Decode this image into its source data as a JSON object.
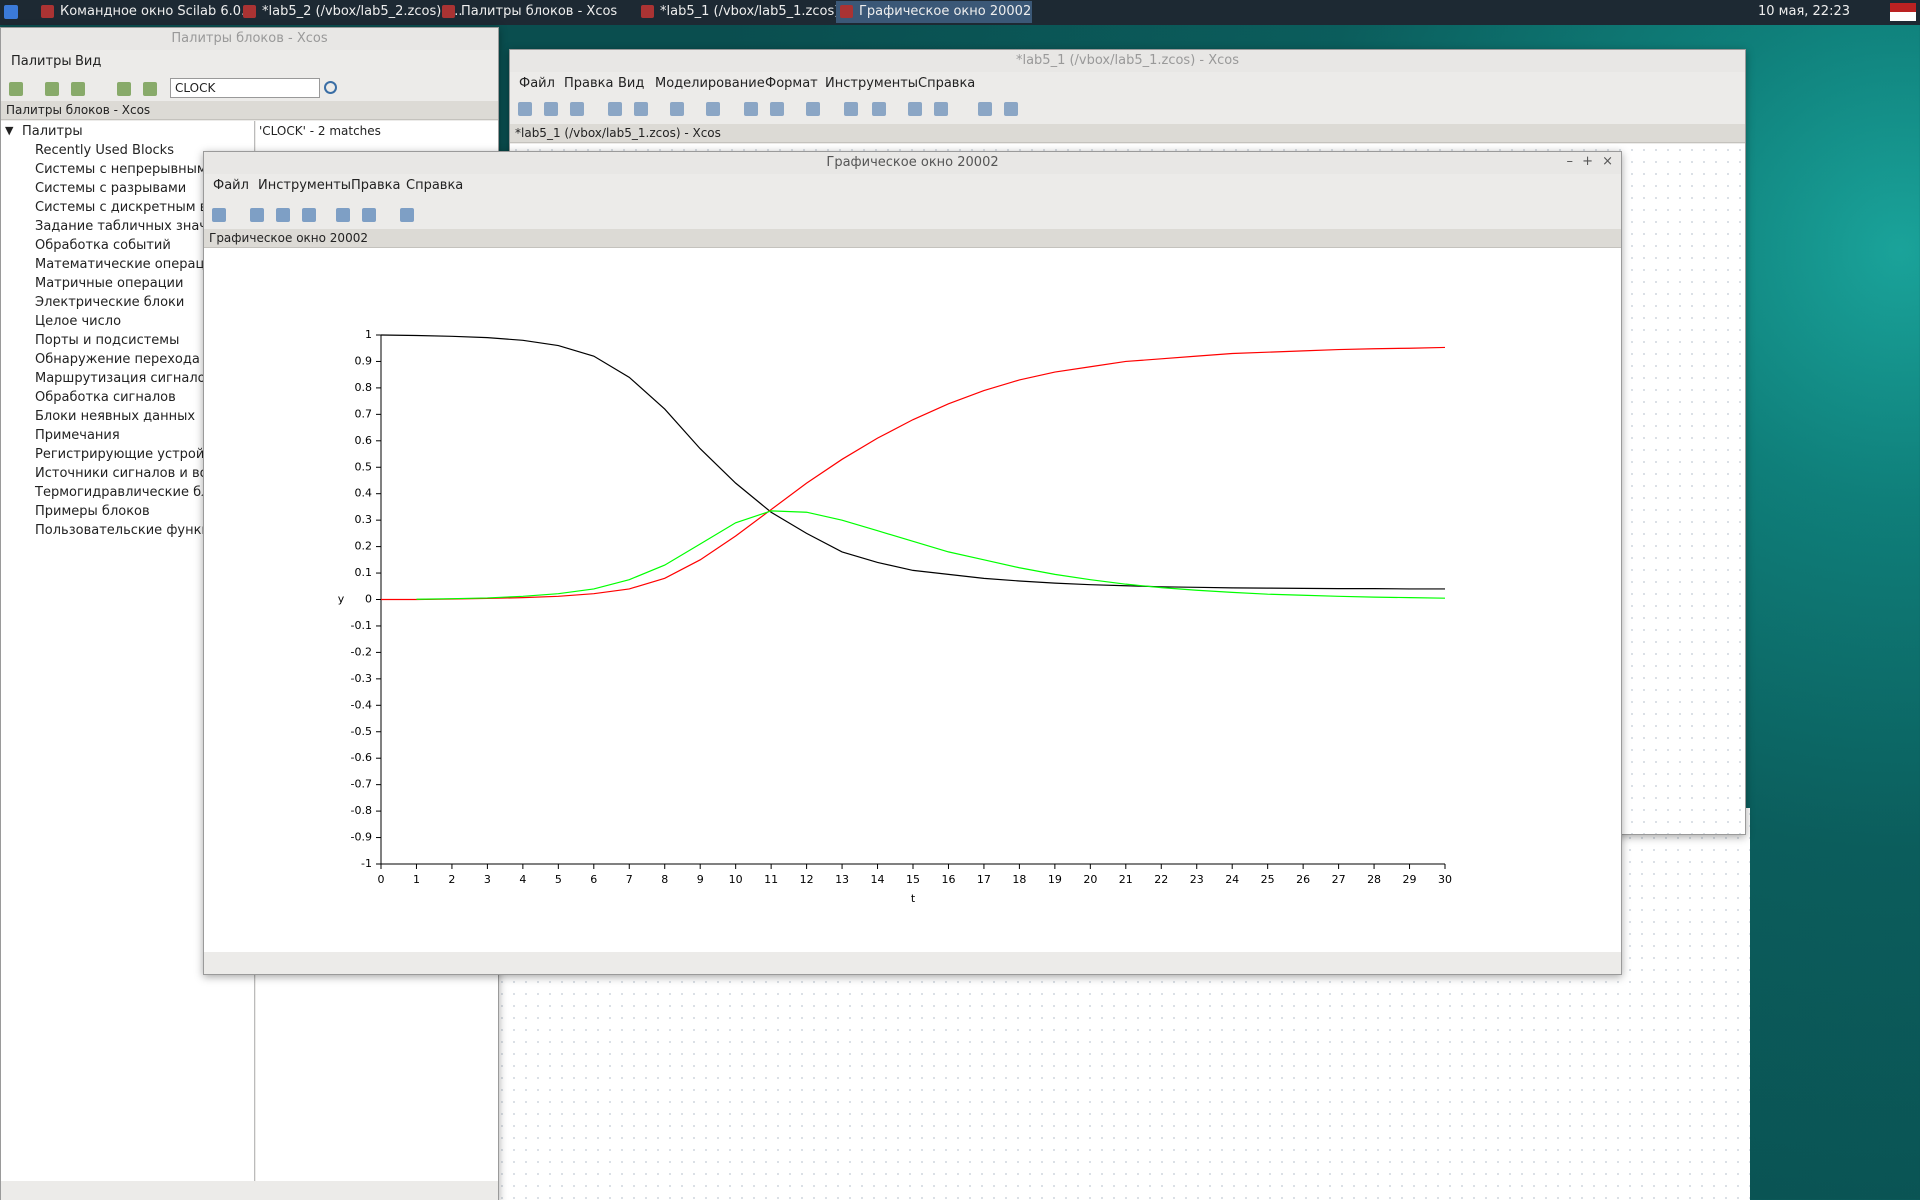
{
  "taskbar": {
    "tasks": [
      "Командное окно Scilab 6.0.1",
      "*lab5_2 (/vbox/lab5_2.zcos) -...",
      "Палитры блоков - Xcos",
      "*lab5_1 (/vbox/lab5_1.zcos) -...",
      "Графическое окно 20002"
    ],
    "clock": "10 мая, 22:23"
  },
  "palette_window": {
    "title": "Палитры блоков - Xcos",
    "menu": [
      "Палитры",
      "Вид"
    ],
    "search": "CLOCK",
    "header": "Палитры блоков - Xcos",
    "tree_root": "Палитры",
    "items": [
      "Recently Used Blocks",
      "Системы с непрерывным вр",
      "Системы с разрывами",
      "Системы с дискретным врем",
      "Задание табличных значени",
      "Обработка событий",
      "Математические операции",
      "Матричные операции",
      "Электрические блоки",
      "Целое число",
      "Порты и подсистемы",
      "Обнаружение перехода чере",
      "Маршрутизация сигналов",
      "Обработка сигналов",
      "Блоки неявных данных",
      "Примечания",
      "Регистрирующие устройства",
      "Источники сигналов и возде",
      "Термогидравлические блоки",
      "Примеры блоков",
      "Пользовательские функции"
    ],
    "result": "'CLOCK' - 2 matches"
  },
  "xcos_window": {
    "title": "*lab5_1 (/vbox/lab5_1.zcos) - Xcos",
    "menu": [
      "Файл",
      "Правка",
      "Вид",
      "Моделирование",
      "Формат",
      "Инструменты",
      "Справка"
    ],
    "tab": "*lab5_1 (/vbox/lab5_1.zcos) - Xcos"
  },
  "graphic_window": {
    "title": "Графическое окно 20002",
    "menu": [
      "Файл",
      "Инструменты",
      "Правка",
      "Справка"
    ],
    "header": "Графическое окно 20002"
  },
  "chart_data": {
    "type": "line",
    "xlabel": "t",
    "ylabel": "y",
    "x": [
      0,
      1,
      2,
      3,
      4,
      5,
      6,
      7,
      8,
      9,
      10,
      11,
      12,
      13,
      14,
      15,
      16,
      17,
      18,
      19,
      20,
      21,
      22,
      23,
      24,
      25,
      26,
      27,
      28,
      29,
      30
    ],
    "xlim": [
      0,
      30
    ],
    "xticks": [
      0,
      1,
      2,
      3,
      4,
      5,
      6,
      7,
      8,
      9,
      10,
      11,
      12,
      13,
      14,
      15,
      16,
      17,
      18,
      19,
      20,
      21,
      22,
      23,
      24,
      25,
      26,
      27,
      28,
      29,
      30
    ],
    "ylim": [
      -1,
      1
    ],
    "yticks": [
      -1,
      -0.9,
      -0.8,
      -0.7,
      -0.6,
      -0.5,
      -0.4,
      -0.3,
      -0.2,
      -0.1,
      0,
      0.1,
      0.2,
      0.3,
      0.4,
      0.5,
      0.6,
      0.7,
      0.8,
      0.9,
      1
    ],
    "series": [
      {
        "color": "#000000",
        "values": [
          1.0,
          0.998,
          0.995,
          0.99,
          0.98,
          0.96,
          0.92,
          0.84,
          0.72,
          0.57,
          0.44,
          0.33,
          0.25,
          0.18,
          0.14,
          0.11,
          0.095,
          0.08,
          0.07,
          0.062,
          0.056,
          0.052,
          0.048,
          0.046,
          0.044,
          0.043,
          0.042,
          0.041,
          0.041,
          0.04,
          0.04
        ]
      },
      {
        "color": "#ff0000",
        "values": [
          0,
          0,
          0.002,
          0.004,
          0.007,
          0.012,
          0.022,
          0.04,
          0.08,
          0.15,
          0.24,
          0.34,
          0.44,
          0.53,
          0.61,
          0.68,
          0.74,
          0.79,
          0.83,
          0.86,
          0.88,
          0.9,
          0.91,
          0.92,
          0.93,
          0.935,
          0.94,
          0.945,
          0.948,
          0.95,
          0.953
        ]
      },
      {
        "color": "#00ff00",
        "values": [
          null,
          0.001,
          0.003,
          0.006,
          0.012,
          0.022,
          0.04,
          0.075,
          0.13,
          0.21,
          0.29,
          0.335,
          0.33,
          0.3,
          0.26,
          0.22,
          0.18,
          0.15,
          0.12,
          0.095,
          0.075,
          0.058,
          0.045,
          0.035,
          0.027,
          0.02,
          0.016,
          0.012,
          0.009,
          0.007,
          0.005
        ]
      }
    ]
  }
}
